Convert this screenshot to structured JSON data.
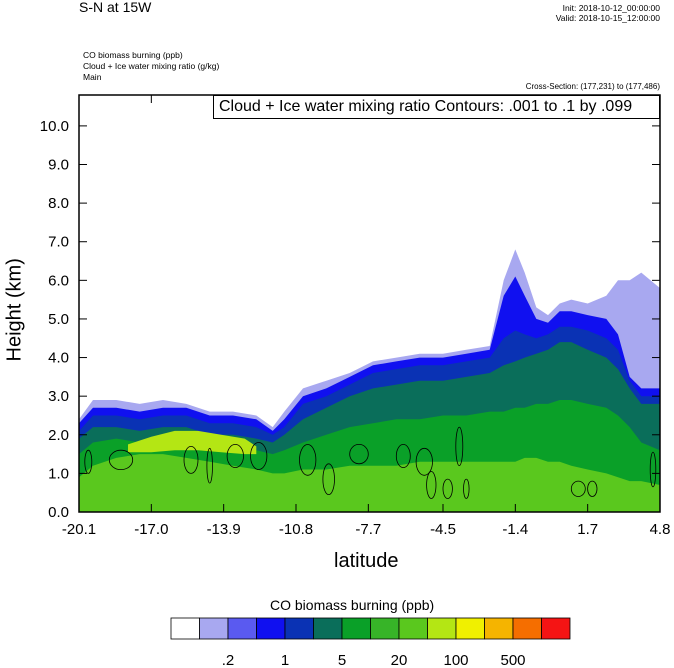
{
  "header": {
    "title": "S-N at 15W",
    "init": "Init: 2018-10-12_00:00:00",
    "valid": "Valid: 2018-10-15_12:00:00",
    "fields": [
      "CO biomass burning   (ppb)",
      "Cloud + Ice water mixing ratio   (g/kg)",
      "Main"
    ],
    "cross_section": "Cross-Section: (177,231) to (177,486)",
    "contour_label": "Cloud + Ice water mixing ratio Contours: .001 to .1 by .099"
  },
  "colors": {
    "levels": [
      "#ffffff",
      "#a8a8f0",
      "#5a5af0",
      "#1010f0",
      "#0a32b4",
      "#0a6e5a",
      "#0aa028",
      "#37b428",
      "#5ac81e",
      "#b4e614",
      "#f0f000",
      "#f5b400",
      "#f56e00",
      "#f51414"
    ]
  },
  "chart_data": {
    "type": "contour_cross_section",
    "title": "S-N at 15W",
    "xlabel": "latitude",
    "ylabel": "Height (km)",
    "xlim": [
      -20.1,
      4.8
    ],
    "ylim": [
      0.0,
      10.8
    ],
    "x_ticks": [
      "-20.1",
      "-17.0",
      "-13.9",
      "-10.8",
      "-7.7",
      "-4.5",
      "-1.4",
      "1.7",
      "4.8"
    ],
    "y_ticks": [
      "0.0",
      "1.0",
      "2.0",
      "3.0",
      "4.0",
      "5.0",
      "6.0",
      "7.0",
      "8.0",
      "9.0",
      "10.0"
    ],
    "colorbar": {
      "title": "CO biomass burning  (ppb)",
      "tick_labels": [
        ".2",
        "1",
        "5",
        "20",
        "100",
        "500"
      ]
    },
    "profiles": {
      "lat": [
        -20.1,
        -19.5,
        -18.5,
        -17.5,
        -16.5,
        -15.5,
        -14.5,
        -13.5,
        -12.5,
        -11.8,
        -11.3,
        -10.5,
        -9.5,
        -8.5,
        -7.5,
        -6.5,
        -5.5,
        -4.5,
        -3.5,
        -2.5,
        -1.9,
        -1.4,
        -1.0,
        -0.5,
        0.0,
        0.5,
        1.0,
        1.7,
        2.5,
        3.0,
        3.5,
        4.0,
        4.8
      ],
      "top_light": [
        2.4,
        2.9,
        2.9,
        2.8,
        2.9,
        2.8,
        2.6,
        2.6,
        2.5,
        2.2,
        2.6,
        3.2,
        3.4,
        3.6,
        3.9,
        4.0,
        4.1,
        4.1,
        4.2,
        4.3,
        6.0,
        6.8,
        6.2,
        5.3,
        5.1,
        5.4,
        5.5,
        5.4,
        5.6,
        6.0,
        6.0,
        6.2,
        5.8
      ],
      "top_blue": [
        2.3,
        2.7,
        2.7,
        2.6,
        2.7,
        2.7,
        2.5,
        2.5,
        2.4,
        2.1,
        2.4,
        3.0,
        3.2,
        3.5,
        3.8,
        3.9,
        4.0,
        4.0,
        4.1,
        4.2,
        5.6,
        6.1,
        5.6,
        5.0,
        4.9,
        5.2,
        5.2,
        5.1,
        5.0,
        4.6,
        3.5,
        3.2,
        3.2
      ],
      "top_navy": [
        2.1,
        2.5,
        2.5,
        2.4,
        2.5,
        2.5,
        2.3,
        2.3,
        2.2,
        2.0,
        2.2,
        2.8,
        3.0,
        3.3,
        3.6,
        3.7,
        3.8,
        3.8,
        3.9,
        4.0,
        4.5,
        4.7,
        4.6,
        4.5,
        4.6,
        4.8,
        4.8,
        4.7,
        4.5,
        4.2,
        3.4,
        3.0,
        3.0
      ],
      "top_teal": [
        1.9,
        2.2,
        2.2,
        2.1,
        2.2,
        2.2,
        2.0,
        2.0,
        1.9,
        1.8,
        2.0,
        2.4,
        2.7,
        3.0,
        3.2,
        3.3,
        3.4,
        3.4,
        3.5,
        3.6,
        3.8,
        3.9,
        4.0,
        4.1,
        4.2,
        4.4,
        4.4,
        4.2,
        4.0,
        3.7,
        3.2,
        2.8,
        2.8
      ],
      "top_green": [
        1.5,
        1.8,
        1.9,
        1.8,
        1.9,
        1.8,
        1.7,
        1.7,
        1.6,
        1.5,
        1.6,
        1.8,
        2.0,
        2.2,
        2.3,
        2.4,
        2.4,
        2.5,
        2.5,
        2.6,
        2.6,
        2.7,
        2.7,
        2.8,
        2.8,
        2.9,
        2.9,
        2.8,
        2.7,
        2.5,
        2.2,
        1.8,
        1.6
      ],
      "top_lgreen": [
        0.9,
        1.2,
        1.4,
        1.5,
        1.5,
        1.4,
        1.3,
        1.2,
        1.1,
        1.0,
        1.0,
        1.1,
        1.1,
        1.2,
        1.2,
        1.2,
        1.3,
        1.3,
        1.3,
        1.3,
        1.3,
        1.3,
        1.4,
        1.4,
        1.3,
        1.3,
        1.2,
        1.1,
        1.0,
        0.9,
        0.8,
        0.8,
        0.7
      ],
      "yellowgreen_patch": {
        "lat": [
          -18.0,
          -17.0,
          -16.0,
          -15.0,
          -14.0,
          -13.0,
          -12.5
        ],
        "top": [
          1.75,
          1.95,
          2.1,
          2.1,
          2.0,
          1.9,
          1.7
        ],
        "bottom": [
          1.55,
          1.55,
          1.6,
          1.6,
          1.55,
          1.5,
          1.5
        ]
      }
    },
    "contour_cells": [
      {
        "lat": -19.7,
        "h": 1.3,
        "rx": 0.15,
        "ry": 0.3
      },
      {
        "lat": -18.3,
        "h": 1.35,
        "rx": 0.5,
        "ry": 0.25
      },
      {
        "lat": -15.3,
        "h": 1.35,
        "rx": 0.3,
        "ry": 0.35
      },
      {
        "lat": -14.5,
        "h": 1.2,
        "rx": 0.12,
        "ry": 0.45
      },
      {
        "lat": -13.4,
        "h": 1.45,
        "rx": 0.35,
        "ry": 0.3
      },
      {
        "lat": -12.4,
        "h": 1.45,
        "rx": 0.35,
        "ry": 0.35
      },
      {
        "lat": -10.3,
        "h": 1.35,
        "rx": 0.35,
        "ry": 0.4
      },
      {
        "lat": -9.4,
        "h": 0.85,
        "rx": 0.25,
        "ry": 0.4
      },
      {
        "lat": -8.1,
        "h": 1.5,
        "rx": 0.4,
        "ry": 0.25
      },
      {
        "lat": -6.2,
        "h": 1.45,
        "rx": 0.3,
        "ry": 0.3
      },
      {
        "lat": -5.3,
        "h": 1.3,
        "rx": 0.35,
        "ry": 0.35
      },
      {
        "lat": -5.0,
        "h": 0.7,
        "rx": 0.2,
        "ry": 0.35
      },
      {
        "lat": -4.3,
        "h": 0.6,
        "rx": 0.2,
        "ry": 0.25
      },
      {
        "lat": -3.8,
        "h": 1.7,
        "rx": 0.15,
        "ry": 0.5
      },
      {
        "lat": -3.5,
        "h": 0.6,
        "rx": 0.12,
        "ry": 0.25
      },
      {
        "lat": 1.3,
        "h": 0.6,
        "rx": 0.3,
        "ry": 0.2
      },
      {
        "lat": 1.9,
        "h": 0.6,
        "rx": 0.2,
        "ry": 0.2
      },
      {
        "lat": 4.5,
        "h": 1.1,
        "rx": 0.12,
        "ry": 0.45
      }
    ]
  }
}
